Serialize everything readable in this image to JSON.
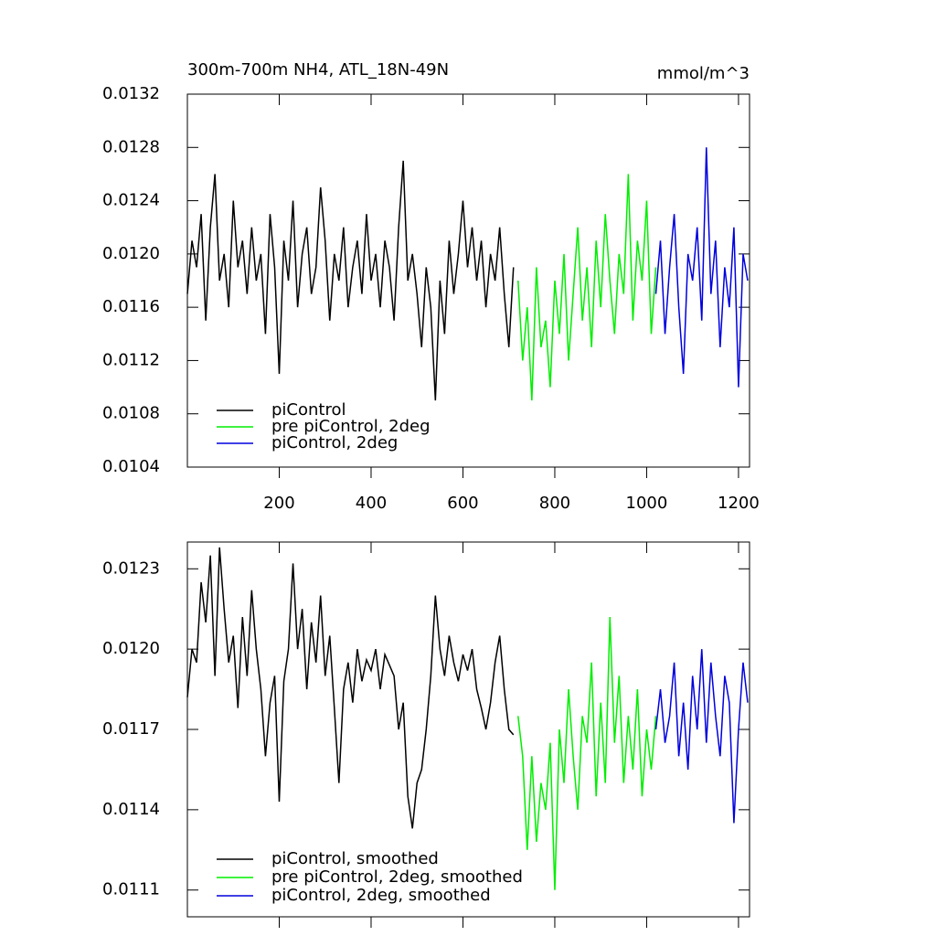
{
  "chart_data": [
    {
      "type": "line",
      "title": "300m-700m NH4, ATL_18N-49N",
      "subtitle": "mmol/m^3",
      "xlim": [
        0,
        1224
      ],
      "xticks": [
        200,
        400,
        600,
        800,
        1000,
        1200
      ],
      "ylim": [
        0.0104,
        0.0132
      ],
      "yticks": [
        0.0104,
        0.0108,
        0.0112,
        0.0116,
        {
          "value": 0.012,
          "label": "0.0120"
        },
        0.0124,
        0.0128,
        0.0132
      ],
      "legend": "lower left",
      "series": [
        {
          "name": "piControl",
          "color": "#000000",
          "x": [
            0,
            10,
            20,
            30,
            40,
            50,
            60,
            70,
            80,
            90,
            100,
            110,
            120,
            130,
            140,
            150,
            160,
            170,
            180,
            190,
            200,
            210,
            220,
            230,
            240,
            250,
            260,
            270,
            280,
            290,
            300,
            310,
            320,
            330,
            340,
            350,
            360,
            370,
            380,
            390,
            400,
            410,
            420,
            430,
            440,
            450,
            460,
            470,
            480,
            490,
            500,
            510,
            520,
            530,
            540,
            550,
            560,
            570,
            580,
            590,
            600,
            610,
            620,
            630,
            640,
            650,
            660,
            670,
            680,
            690,
            700,
            710
          ],
          "values": [
            0.0117,
            0.0121,
            0.0119,
            0.0123,
            0.0115,
            0.0122,
            0.0126,
            0.0118,
            0.012,
            0.0116,
            0.0124,
            0.0119,
            0.0121,
            0.0117,
            0.0122,
            0.0118,
            0.012,
            0.0114,
            0.0123,
            0.0119,
            0.0111,
            0.0121,
            0.0118,
            0.0124,
            0.0116,
            0.012,
            0.0122,
            0.0117,
            0.0119,
            0.0125,
            0.0121,
            0.0115,
            0.012,
            0.0118,
            0.0122,
            0.0116,
            0.0119,
            0.0121,
            0.0117,
            0.0123,
            0.0118,
            0.012,
            0.0116,
            0.0121,
            0.0119,
            0.0115,
            0.0122,
            0.0127,
            0.0118,
            0.012,
            0.0117,
            0.0113,
            0.0119,
            0.0116,
            0.0109,
            0.0118,
            0.0114,
            0.0121,
            0.0117,
            0.012,
            0.0124,
            0.0119,
            0.0122,
            0.0118,
            0.0121,
            0.0116,
            0.012,
            0.0118,
            0.0122,
            0.0117,
            0.0113,
            0.0119
          ]
        },
        {
          "name": "pre piControl, 2deg",
          "color": "#00ee00",
          "x": [
            720,
            730,
            740,
            750,
            760,
            770,
            780,
            790,
            800,
            810,
            820,
            830,
            840,
            850,
            860,
            870,
            880,
            890,
            900,
            910,
            920,
            930,
            940,
            950,
            960,
            970,
            980,
            990,
            1000,
            1010,
            1020
          ],
          "values": [
            0.0118,
            0.0112,
            0.0116,
            0.0109,
            0.0119,
            0.0113,
            0.0115,
            0.011,
            0.0118,
            0.0114,
            0.012,
            0.0112,
            0.0117,
            0.0122,
            0.0115,
            0.0119,
            0.0113,
            0.0121,
            0.0116,
            0.0123,
            0.0118,
            0.0114,
            0.012,
            0.0117,
            0.0126,
            0.0115,
            0.0121,
            0.0118,
            0.0124,
            0.0114,
            0.0119
          ]
        },
        {
          "name": "piControl, 2deg",
          "color": "#0000dd",
          "x": [
            1020,
            1030,
            1040,
            1050,
            1060,
            1070,
            1080,
            1090,
            1100,
            1110,
            1120,
            1130,
            1140,
            1150,
            1160,
            1170,
            1180,
            1190,
            1200,
            1210,
            1220
          ],
          "values": [
            0.0117,
            0.0121,
            0.0114,
            0.0119,
            0.0123,
            0.0116,
            0.0111,
            0.012,
            0.0118,
            0.0122,
            0.0115,
            0.0128,
            0.0117,
            0.0121,
            0.0113,
            0.0119,
            0.0116,
            0.0122,
            0.011,
            0.012,
            0.0118
          ]
        }
      ]
    },
    {
      "type": "line",
      "xlim": [
        0,
        1224
      ],
      "xticks": [
        200,
        400,
        600,
        800,
        1000,
        1200
      ],
      "ylim": [
        0.011,
        0.0124
      ],
      "yticks": [
        0.0111,
        0.0114,
        0.0117,
        {
          "value": 0.012,
          "label": "0.0120"
        },
        0.0123
      ],
      "legend": "lower left",
      "series": [
        {
          "name": "piControl, smoothed",
          "color": "#000000",
          "x": [
            0,
            10,
            20,
            30,
            40,
            50,
            60,
            70,
            80,
            90,
            100,
            110,
            120,
            130,
            140,
            150,
            160,
            170,
            180,
            190,
            200,
            210,
            220,
            230,
            240,
            250,
            260,
            270,
            280,
            290,
            300,
            310,
            320,
            330,
            340,
            350,
            360,
            370,
            380,
            390,
            400,
            410,
            420,
            430,
            440,
            450,
            460,
            470,
            480,
            490,
            500,
            510,
            520,
            530,
            540,
            550,
            560,
            570,
            580,
            590,
            600,
            610,
            620,
            630,
            640,
            650,
            660,
            670,
            680,
            690,
            700,
            710
          ],
          "values": [
            0.01182,
            0.012,
            0.01195,
            0.01225,
            0.0121,
            0.01235,
            0.0119,
            0.01238,
            0.01215,
            0.01195,
            0.01205,
            0.01178,
            0.01212,
            0.0119,
            0.01222,
            0.012,
            0.01185,
            0.0116,
            0.0118,
            0.0119,
            0.01143,
            0.01188,
            0.012,
            0.01232,
            0.012,
            0.01215,
            0.01185,
            0.0121,
            0.01195,
            0.0122,
            0.0119,
            0.01205,
            0.01178,
            0.0115,
            0.01185,
            0.01195,
            0.0118,
            0.012,
            0.01188,
            0.01196,
            0.01192,
            0.012,
            0.01185,
            0.01198,
            0.01194,
            0.0119,
            0.0117,
            0.0118,
            0.01145,
            0.01133,
            0.0115,
            0.01155,
            0.0117,
            0.0119,
            0.0122,
            0.012,
            0.0119,
            0.01205,
            0.01195,
            0.01188,
            0.01198,
            0.01192,
            0.012,
            0.01185,
            0.01178,
            0.0117,
            0.0118,
            0.01195,
            0.01205,
            0.01185,
            0.0117,
            0.01168
          ]
        },
        {
          "name": "pre piControl, 2deg, smoothed",
          "color": "#00ee00",
          "x": [
            720,
            730,
            740,
            750,
            760,
            770,
            780,
            790,
            800,
            810,
            820,
            830,
            840,
            850,
            860,
            870,
            880,
            890,
            900,
            910,
            920,
            930,
            940,
            950,
            960,
            970,
            980,
            990,
            1000,
            1010,
            1020
          ],
          "values": [
            0.01175,
            0.0116,
            0.01125,
            0.0116,
            0.01128,
            0.0115,
            0.0114,
            0.01165,
            0.0111,
            0.0117,
            0.0115,
            0.01185,
            0.0116,
            0.0114,
            0.01175,
            0.01165,
            0.01195,
            0.01145,
            0.0118,
            0.0115,
            0.01212,
            0.01165,
            0.0119,
            0.0115,
            0.01175,
            0.01155,
            0.01185,
            0.01145,
            0.0117,
            0.01155,
            0.01175
          ]
        },
        {
          "name": "piControl, 2deg, smoothed",
          "color": "#0000dd",
          "x": [
            1020,
            1030,
            1040,
            1050,
            1060,
            1070,
            1080,
            1090,
            1100,
            1110,
            1120,
            1130,
            1140,
            1150,
            1160,
            1170,
            1180,
            1190,
            1200,
            1210,
            1220
          ],
          "values": [
            0.0117,
            0.01185,
            0.01165,
            0.01175,
            0.01195,
            0.0116,
            0.0118,
            0.01155,
            0.0119,
            0.0117,
            0.012,
            0.01165,
            0.01195,
            0.01175,
            0.0116,
            0.0119,
            0.0118,
            0.01135,
            0.0117,
            0.01195,
            0.0118
          ]
        }
      ]
    }
  ]
}
